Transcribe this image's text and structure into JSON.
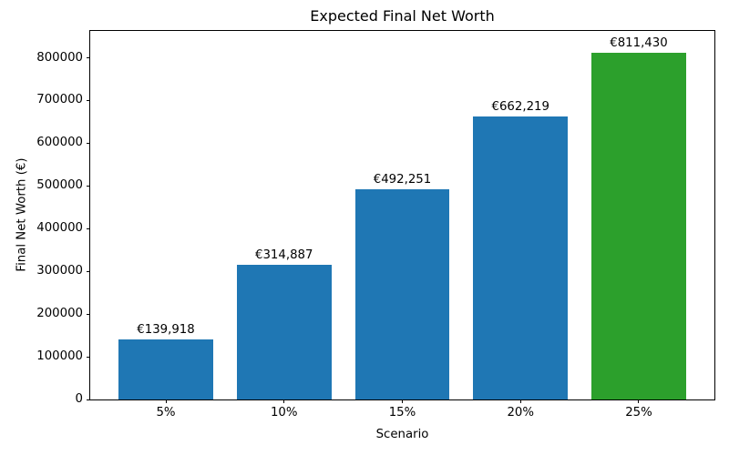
{
  "chart_data": {
    "type": "bar",
    "title": "Expected Final Net Worth",
    "xlabel": "Scenario",
    "ylabel": "Final Net Worth (€)",
    "categories": [
      "5%",
      "10%",
      "15%",
      "20%",
      "25%"
    ],
    "values": [
      139918,
      314887,
      492251,
      662219,
      811430
    ],
    "value_labels": [
      "€139,918",
      "€314,887",
      "€492,251",
      "€662,219",
      "€811,430"
    ],
    "bar_colors": [
      "#1f77b4",
      "#1f77b4",
      "#1f77b4",
      "#1f77b4",
      "#2ca02c"
    ],
    "ylim": [
      0,
      863000
    ],
    "yticks": [
      0,
      100000,
      200000,
      300000,
      400000,
      500000,
      600000,
      700000,
      800000
    ],
    "ytick_labels": [
      "0",
      "100000",
      "200000",
      "300000",
      "400000",
      "500000",
      "600000",
      "700000",
      "800000"
    ],
    "grid": false,
    "legend": null,
    "bar_width_fraction": 0.8,
    "category_margin_fraction": 0.24
  }
}
